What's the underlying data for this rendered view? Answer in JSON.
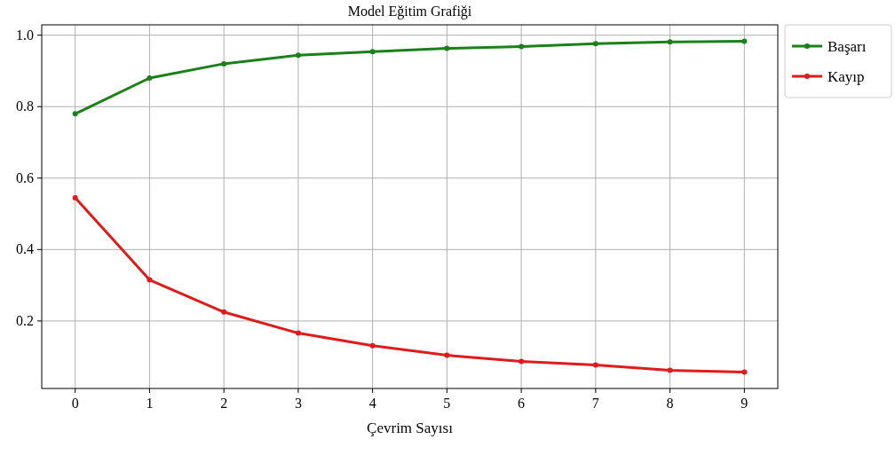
{
  "chart_data": {
    "type": "line",
    "title": "Model Eğitim Grafiği",
    "xlabel": "Çevrim Sayısı",
    "x": [
      0,
      1,
      2,
      3,
      4,
      5,
      6,
      7,
      8,
      9
    ],
    "series": [
      {
        "name": "Başarı",
        "color": "#1a8019",
        "values": [
          0.78,
          0.88,
          0.92,
          0.944,
          0.954,
          0.963,
          0.968,
          0.976,
          0.981,
          0.983
        ]
      },
      {
        "name": "Kayıp",
        "color": "#e01b1b",
        "values": [
          0.545,
          0.315,
          0.225,
          0.166,
          0.131,
          0.104,
          0.087,
          0.077,
          0.062,
          0.057
        ]
      }
    ],
    "xlim": [
      -0.45,
      9.45
    ],
    "xticks": [
      0,
      1,
      2,
      3,
      4,
      5,
      6,
      7,
      8,
      9
    ],
    "ylim": [
      0.011,
      1.029
    ],
    "yticks": [
      {
        "value": 0.2,
        "label": "0.2"
      },
      {
        "value": 0.4,
        "label": "0.4"
      },
      {
        "value": 0.6,
        "label": "0.6"
      },
      {
        "value": 0.8,
        "label": "0.8"
      },
      {
        "value": 1.0,
        "label": "1.0"
      }
    ],
    "grid": true,
    "legend": "top right",
    "marker": "circle",
    "line_style": "solid"
  }
}
